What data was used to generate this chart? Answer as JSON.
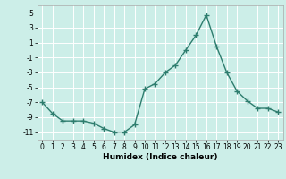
{
  "x": [
    0,
    1,
    2,
    3,
    4,
    5,
    6,
    7,
    8,
    9,
    10,
    11,
    12,
    13,
    14,
    15,
    16,
    17,
    18,
    19,
    20,
    21,
    22,
    23
  ],
  "y": [
    -7,
    -8.5,
    -9.5,
    -9.5,
    -9.5,
    -9.8,
    -10.5,
    -11,
    -11,
    -10,
    -5.2,
    -4.5,
    -3,
    -2,
    0,
    2,
    4.7,
    0.5,
    -3,
    -5.5,
    -6.8,
    -7.8,
    -7.8,
    -8.3
  ],
  "line_color": "#2e7d6e",
  "marker": "+",
  "marker_size": 4,
  "xlabel": "Humidex (Indice chaleur)",
  "xlim": [
    -0.5,
    23.5
  ],
  "ylim": [
    -12,
    6
  ],
  "yticks": [
    -11,
    -9,
    -7,
    -5,
    -3,
    -1,
    1,
    3,
    5
  ],
  "xticks": [
    0,
    1,
    2,
    3,
    4,
    5,
    6,
    7,
    8,
    9,
    10,
    11,
    12,
    13,
    14,
    15,
    16,
    17,
    18,
    19,
    20,
    21,
    22,
    23
  ],
  "bg_color": "#cceee8",
  "grid_color": "#ffffff",
  "spine_color": "#aaaaaa",
  "xlabel_fontsize": 6.5,
  "tick_fontsize": 5.5,
  "linewidth": 1.0,
  "markeredgewidth": 1.0
}
